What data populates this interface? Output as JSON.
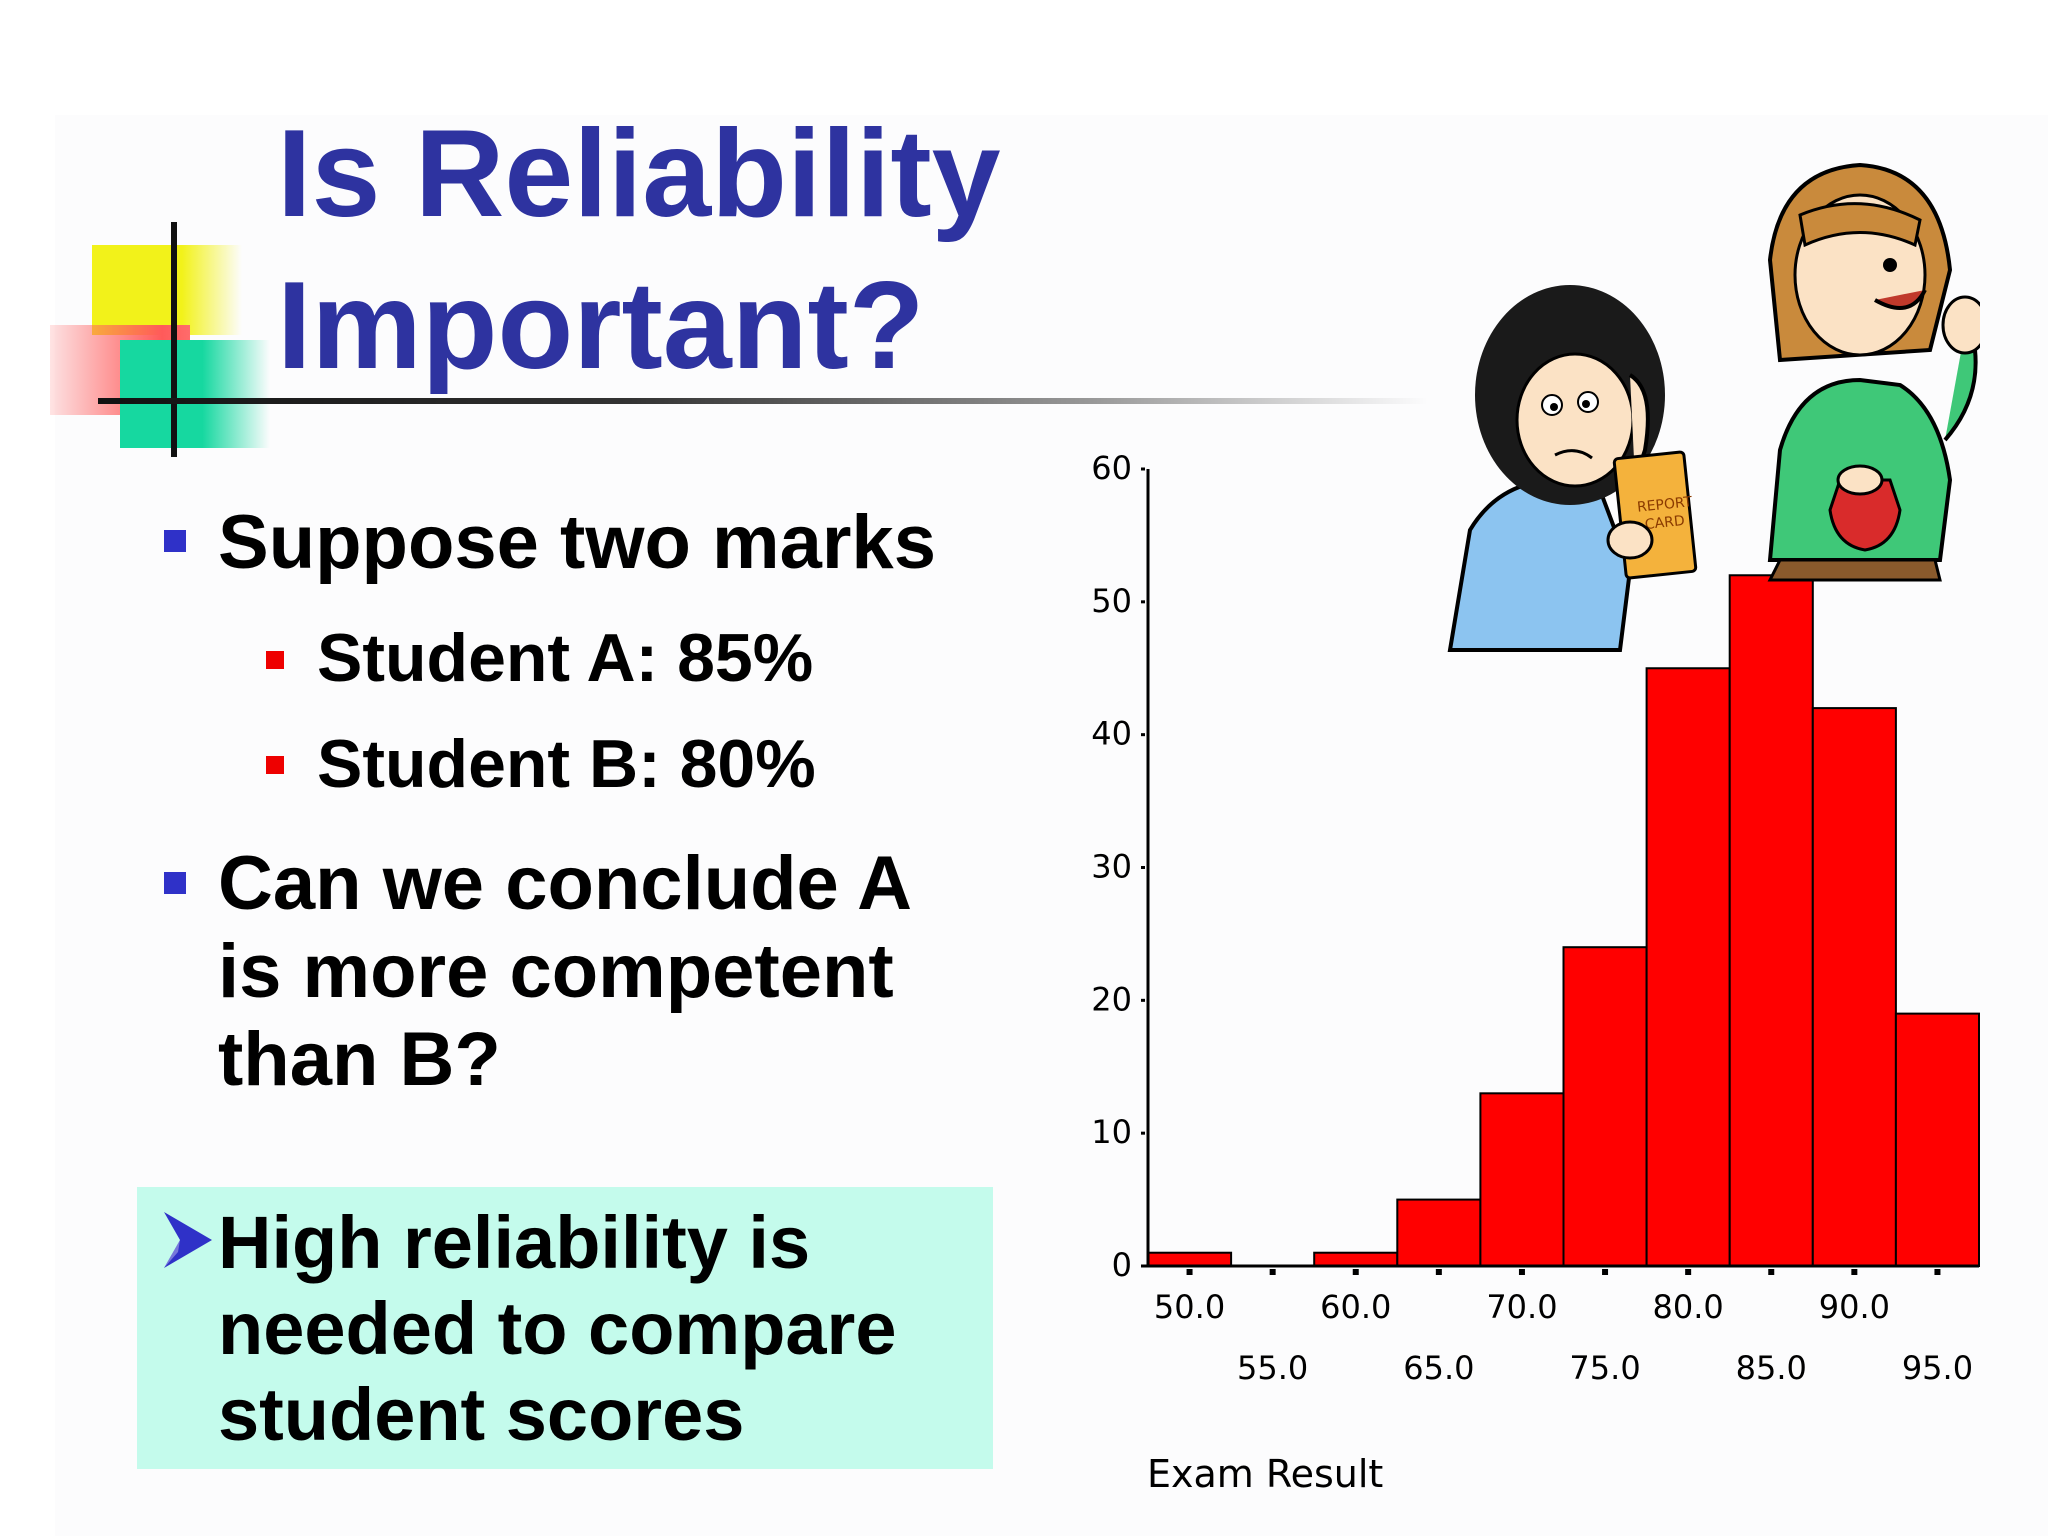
{
  "slide": {
    "title_lines": [
      "Is Reliability",
      "Important?"
    ],
    "bullets": [
      {
        "text_lines": [
          "Suppose two marks"
        ],
        "sub": [
          "Student A: 85%",
          "Student B: 80%"
        ]
      },
      {
        "text_lines": [
          "Can we conclude A",
          "is more competent",
          "than B?"
        ]
      }
    ],
    "callout_lines": [
      "High reliability is",
      "needed to compare",
      "student scores"
    ],
    "colors": {
      "title": "#2e33a0",
      "bullet_square": "#2f31c8",
      "sub_square": "#ee0000",
      "callout_bg": "#c4fbec",
      "bar_fill": "#ff0000"
    },
    "clipart": {
      "report_card_lines": [
        "REPORT",
        "CARD"
      ]
    }
  },
  "chart_data": {
    "type": "bar",
    "x": [
      50,
      55,
      60,
      65,
      70,
      75,
      80,
      85,
      90,
      95
    ],
    "values": [
      1,
      0,
      1,
      5,
      13,
      24,
      45,
      52,
      42,
      19
    ],
    "x_tick_labels_row1": [
      "50.0",
      "60.0",
      "70.0",
      "80.0",
      "90.0"
    ],
    "x_tick_labels_row2": [
      "55.0",
      "65.0",
      "75.0",
      "85.0",
      "95.0"
    ],
    "y_ticks": [
      0,
      10,
      20,
      30,
      40,
      50,
      60
    ],
    "ylim": [
      0,
      60
    ],
    "xlabel": "Exam Result",
    "ylabel": "",
    "grid": false
  }
}
